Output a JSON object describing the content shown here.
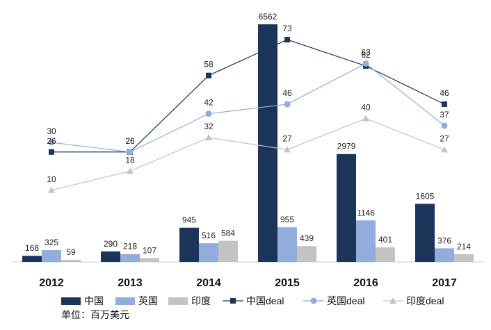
{
  "chart_data": {
    "type": "bar",
    "categories": [
      "2012",
      "2013",
      "2014",
      "2015",
      "2016",
      "2017"
    ],
    "bar_series": [
      {
        "name": "中国",
        "values": [
          168,
          290,
          945,
          6562,
          2979,
          1605
        ],
        "color": "#1c3459"
      },
      {
        "name": "英国",
        "values": [
          325,
          218,
          516,
          955,
          1146,
          376
        ],
        "color": "#92acdc"
      },
      {
        "name": "印度",
        "values": [
          59,
          107,
          584,
          439,
          401,
          214
        ],
        "color": "#c3c3c3"
      }
    ],
    "line_series": [
      {
        "name": "中国deal",
        "values": [
          26,
          26,
          58,
          73,
          62,
          46
        ],
        "color": "#1c3459",
        "marker": "square"
      },
      {
        "name": "英国deal",
        "values": [
          30,
          26,
          42,
          46,
          63,
          37
        ],
        "color": "#92acdc",
        "marker": "circle"
      },
      {
        "name": "印度deal",
        "values": [
          10,
          18,
          32,
          27,
          40,
          27
        ],
        "color": "#c3c3c3",
        "marker": "triangle"
      }
    ],
    "bar_axis_range": [
      0,
      6600
    ],
    "line_axis_range": [
      -20,
      80
    ],
    "grid": false,
    "legend_position": "bottom",
    "unit_note": "单位：百万美元"
  }
}
